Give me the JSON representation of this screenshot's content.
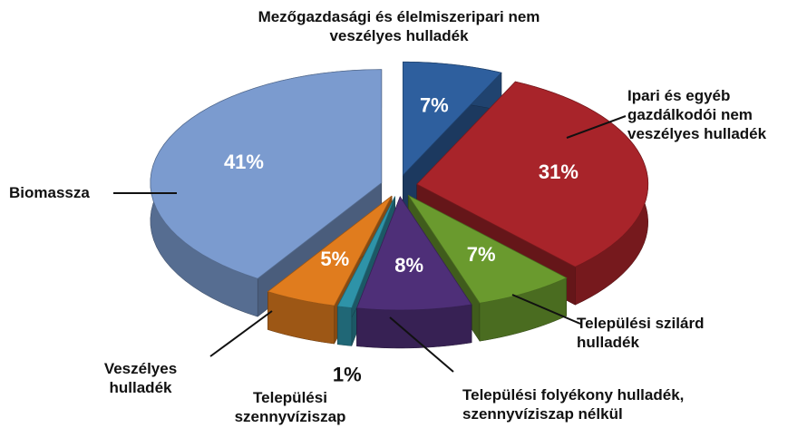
{
  "chart_data": {
    "type": "pie3d",
    "categories": [
      "Mezőgazdasági és élelmiszeripari nem veszélyes hulladék",
      "Ipari és egyéb gazdálkodói nem veszélyes hulladék",
      "Települési szilárd hulladék",
      "Települési folyékony hulladék, szennyvíziszap nélkül",
      "Települési szennyvíziszap",
      "Veszélyes hulladék",
      "Biomassza"
    ],
    "values": [
      7,
      31,
      7,
      8,
      1,
      5,
      41
    ],
    "value_labels": [
      "7%",
      "31%",
      "7%",
      "8%",
      "1%",
      "5%",
      "41%"
    ],
    "colors": [
      "#2e5f9e",
      "#a8242a",
      "#6a9a2e",
      "#4e2f78",
      "#2e93a8",
      "#e07c1e",
      "#7b9bcf"
    ]
  }
}
